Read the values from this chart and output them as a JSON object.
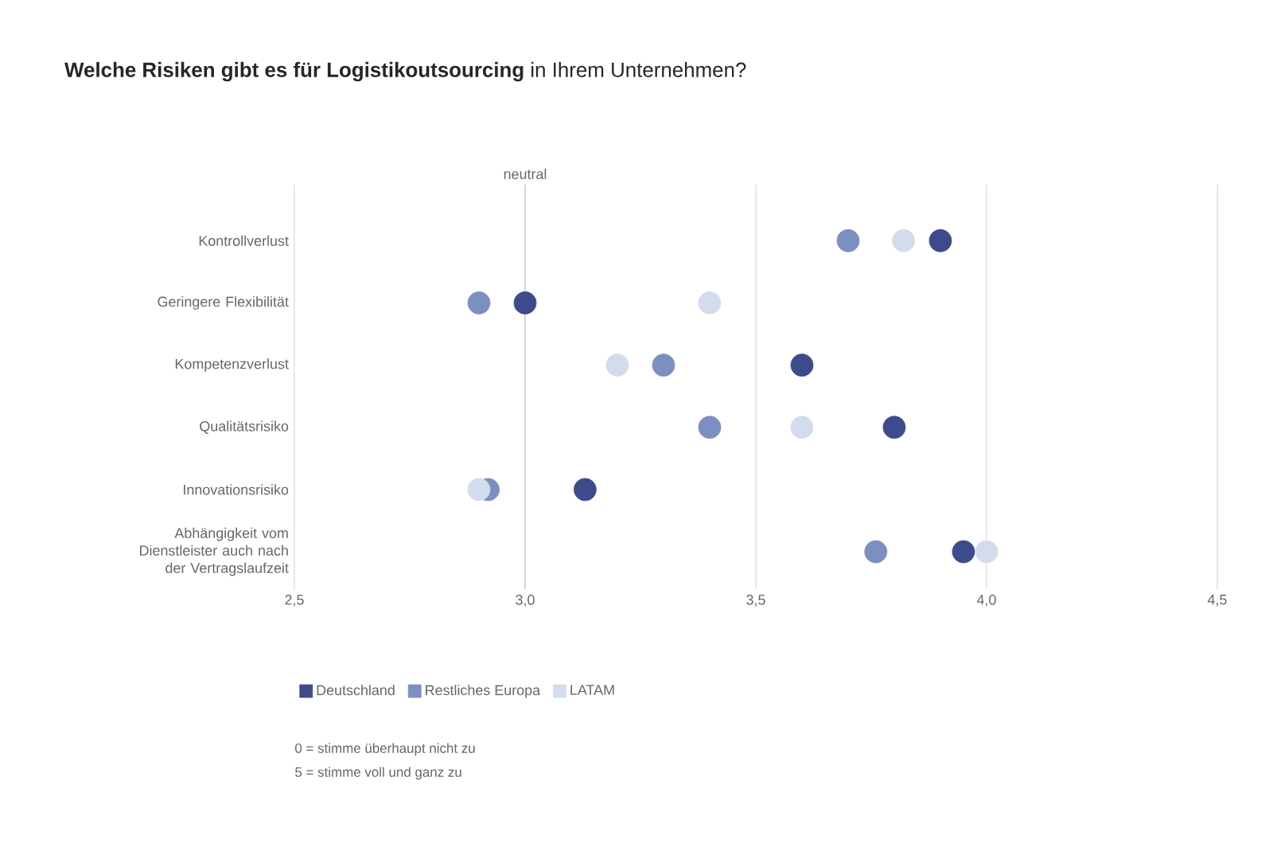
{
  "chart_data": {
    "type": "scatter",
    "orientation": "horizontal",
    "title": "**Welche Risiken gibt es für Logistikoutsourcing** in Ihrem Unternehmen?",
    "categories": [
      "Kontrollverlust",
      "Geringere Flexibilität",
      "Kompetenzverlust",
      "Qualitätsrisiko",
      "Innovationsrisiko",
      "Abhängigkeit vom Dienstleister auch nach der Vertragslaufzeit"
    ],
    "series": [
      {
        "name": "Deutschland",
        "color": "#3d4a8c",
        "values": [
          3.9,
          3.0,
          3.6,
          3.8,
          3.13,
          3.95
        ]
      },
      {
        "name": "Restliches Europa",
        "color": "#7b8fc0",
        "values": [
          3.7,
          2.9,
          3.3,
          3.4,
          2.92,
          3.76
        ]
      },
      {
        "name": "LATAM",
        "color": "#d3dcec",
        "values": [
          3.82,
          3.4,
          3.2,
          3.6,
          2.9,
          4.0
        ]
      }
    ],
    "xlim": [
      2.5,
      4.5
    ],
    "xticks": [
      {
        "value": 2.5,
        "label": "2,5"
      },
      {
        "value": 3.0,
        "label": "3,0"
      },
      {
        "value": 3.5,
        "label": "3,5"
      },
      {
        "value": 4.0,
        "label": "4,0"
      },
      {
        "value": 4.5,
        "label": "4,5"
      }
    ],
    "ref_lines": [
      {
        "axis": "x",
        "value": 3.0,
        "label": "neutral",
        "color": "#c8c8c8"
      }
    ],
    "grid": "x",
    "legend": "bottom",
    "marker": "circle",
    "annotations": [
      "0 = stimme überhaupt nicht zu",
      "5 = stimme voll und ganz zu"
    ]
  }
}
